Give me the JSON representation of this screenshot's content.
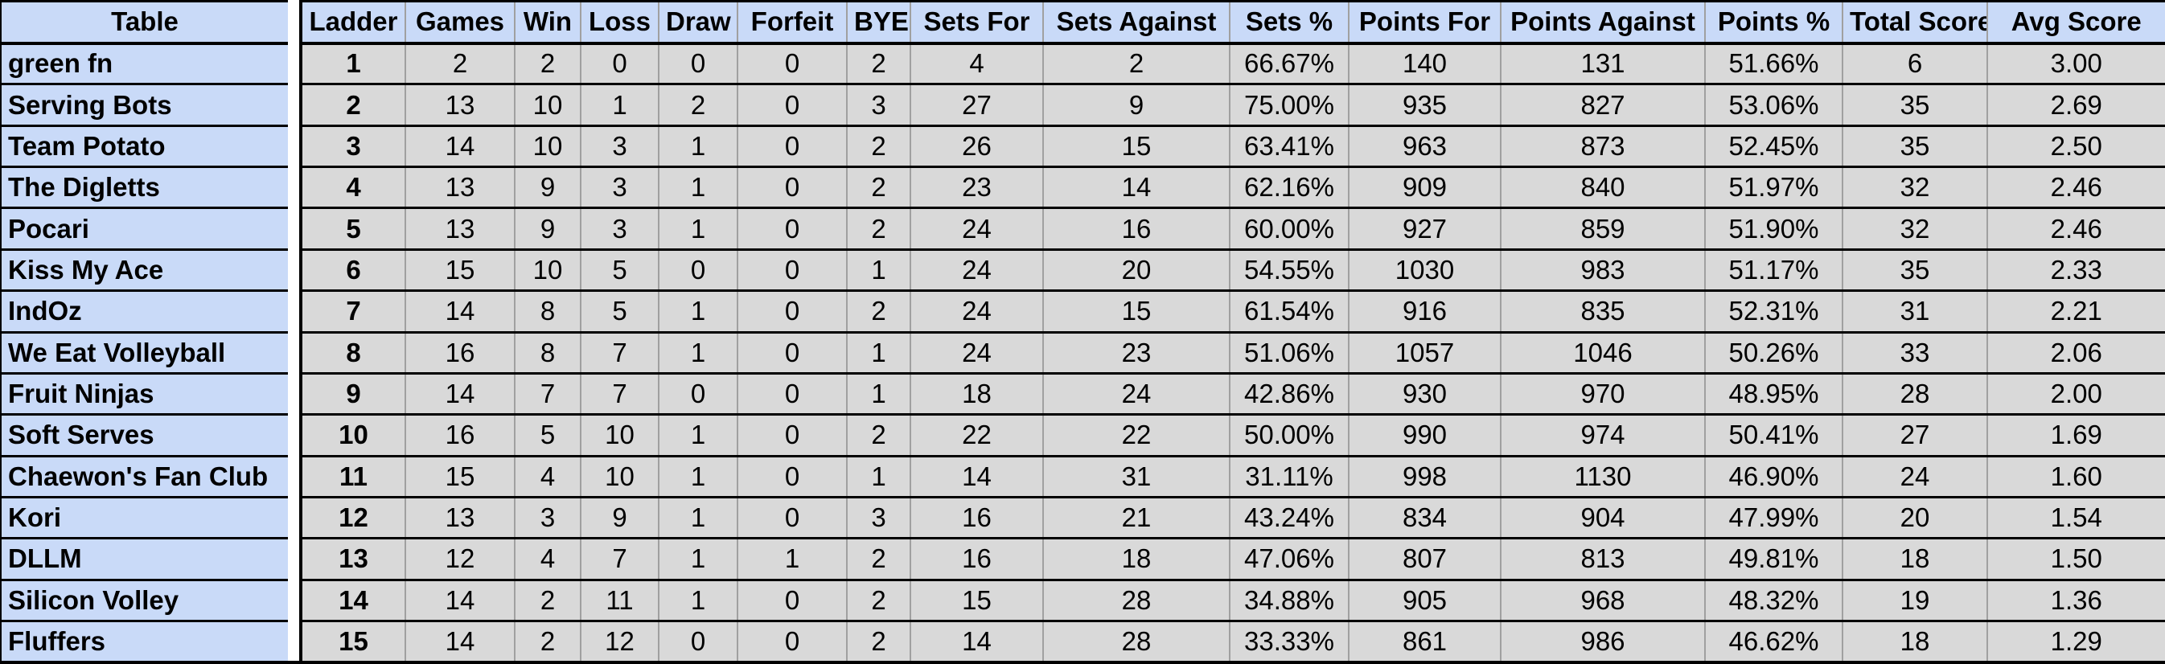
{
  "title": "Volleyball league ladder standings",
  "colors": {
    "header_bg": "#c9daf8",
    "team_column_bg": "#c9daf8",
    "data_cell_bg": "#d9d9d9",
    "gridline": "#a0a0a0",
    "row_separator": "#000000",
    "spacer_bg": "#ffffff"
  },
  "table": {
    "columns": [
      "Table",
      "Ladder",
      "Games",
      "Win",
      "Loss",
      "Draw",
      "Forfeit",
      "BYE",
      "Sets For",
      "Sets Against",
      "Sets %",
      "Points For",
      "Points Against",
      "Points %",
      "Total Score",
      "Avg Score"
    ],
    "rows": [
      {
        "team": "green fn",
        "values": [
          "1",
          "2",
          "2",
          "0",
          "0",
          "0",
          "2",
          "4",
          "2",
          "66.67%",
          "140",
          "131",
          "51.66%",
          "6",
          "3.00"
        ]
      },
      {
        "team": "Serving Bots",
        "values": [
          "2",
          "13",
          "10",
          "1",
          "2",
          "0",
          "3",
          "27",
          "9",
          "75.00%",
          "935",
          "827",
          "53.06%",
          "35",
          "2.69"
        ]
      },
      {
        "team": "Team Potato",
        "values": [
          "3",
          "14",
          "10",
          "3",
          "1",
          "0",
          "2",
          "26",
          "15",
          "63.41%",
          "963",
          "873",
          "52.45%",
          "35",
          "2.50"
        ]
      },
      {
        "team": "The Digletts",
        "values": [
          "4",
          "13",
          "9",
          "3",
          "1",
          "0",
          "2",
          "23",
          "14",
          "62.16%",
          "909",
          "840",
          "51.97%",
          "32",
          "2.46"
        ]
      },
      {
        "team": "Pocari",
        "values": [
          "5",
          "13",
          "9",
          "3",
          "1",
          "0",
          "2",
          "24",
          "16",
          "60.00%",
          "927",
          "859",
          "51.90%",
          "32",
          "2.46"
        ]
      },
      {
        "team": "Kiss My Ace",
        "values": [
          "6",
          "15",
          "10",
          "5",
          "0",
          "0",
          "1",
          "24",
          "20",
          "54.55%",
          "1030",
          "983",
          "51.17%",
          "35",
          "2.33"
        ]
      },
      {
        "team": "IndOz",
        "values": [
          "7",
          "14",
          "8",
          "5",
          "1",
          "0",
          "2",
          "24",
          "15",
          "61.54%",
          "916",
          "835",
          "52.31%",
          "31",
          "2.21"
        ]
      },
      {
        "team": "We Eat Volleyball",
        "values": [
          "8",
          "16",
          "8",
          "7",
          "1",
          "0",
          "1",
          "24",
          "23",
          "51.06%",
          "1057",
          "1046",
          "50.26%",
          "33",
          "2.06"
        ]
      },
      {
        "team": "Fruit Ninjas",
        "values": [
          "9",
          "14",
          "7",
          "7",
          "0",
          "0",
          "1",
          "18",
          "24",
          "42.86%",
          "930",
          "970",
          "48.95%",
          "28",
          "2.00"
        ]
      },
      {
        "team": "Soft Serves",
        "values": [
          "10",
          "16",
          "5",
          "10",
          "1",
          "0",
          "2",
          "22",
          "22",
          "50.00%",
          "990",
          "974",
          "50.41%",
          "27",
          "1.69"
        ]
      },
      {
        "team": "Chaewon's Fan Club",
        "values": [
          "11",
          "15",
          "4",
          "10",
          "1",
          "0",
          "1",
          "14",
          "31",
          "31.11%",
          "998",
          "1130",
          "46.90%",
          "24",
          "1.60"
        ]
      },
      {
        "team": "Kori",
        "values": [
          "12",
          "13",
          "3",
          "9",
          "1",
          "0",
          "3",
          "16",
          "21",
          "43.24%",
          "834",
          "904",
          "47.99%",
          "20",
          "1.54"
        ]
      },
      {
        "team": "DLLM",
        "values": [
          "13",
          "12",
          "4",
          "7",
          "1",
          "1",
          "2",
          "16",
          "18",
          "47.06%",
          "807",
          "813",
          "49.81%",
          "18",
          "1.50"
        ]
      },
      {
        "team": "Silicon Volley",
        "values": [
          "14",
          "14",
          "2",
          "11",
          "1",
          "0",
          "2",
          "15",
          "28",
          "34.88%",
          "905",
          "968",
          "48.32%",
          "19",
          "1.36"
        ]
      },
      {
        "team": "Fluffers",
        "values": [
          "15",
          "14",
          "2",
          "12",
          "0",
          "0",
          "2",
          "14",
          "28",
          "33.33%",
          "861",
          "986",
          "46.62%",
          "18",
          "1.29"
        ]
      }
    ]
  }
}
